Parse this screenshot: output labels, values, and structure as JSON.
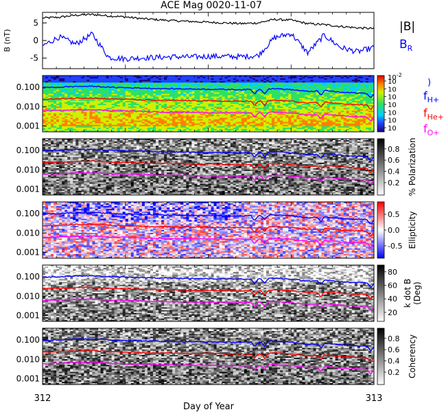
{
  "title": "ACE Mag 0020-11-07",
  "colors": {
    "blue": "#0000ff",
    "red": "#ff0000",
    "magenta": "#ff00ff",
    "black": "#000000"
  },
  "chart_data": [
    {
      "type": "line",
      "panel": "magnetic-field",
      "ylabel": "B (nT)",
      "ylim": [
        -8,
        8
      ],
      "yticks": [
        "5",
        "0",
        "-5"
      ],
      "legend": [
        {
          "label": "|B|",
          "color": "#000000"
        },
        {
          "label": "B",
          "sub": "R",
          "color": "#0000ff"
        }
      ],
      "x": [
        312.0,
        312.05,
        312.1,
        312.15,
        312.2,
        312.25,
        312.3,
        312.35,
        312.4,
        312.45,
        312.5,
        312.55,
        312.6,
        312.65,
        312.7,
        312.75,
        312.8,
        312.85,
        312.9,
        312.95,
        313.0
      ],
      "series": [
        {
          "name": "|B|",
          "values": [
            6.4,
            6.6,
            7.2,
            7.4,
            7.0,
            6.7,
            6.2,
            5.9,
            5.6,
            5.4,
            5.2,
            5.0,
            4.8,
            5.0,
            6.0,
            5.8,
            4.8,
            4.5,
            4.0,
            3.6,
            3.4
          ]
        },
        {
          "name": "B",
          "sub": "R",
          "values": [
            -1.5,
            1.0,
            -1.0,
            1.8,
            -4.8,
            -5.2,
            -4.9,
            -4.8,
            -4.6,
            -4.7,
            -4.5,
            -4.5,
            -4.6,
            -4.3,
            0.8,
            2.0,
            -3.5,
            1.5,
            -2.0,
            -3.2,
            -2.0
          ]
        }
      ]
    },
    {
      "type": "heatmap",
      "panel": "power-spectrum",
      "ylabel": "f (Hz)",
      "yscale": "log",
      "ylim": [
        0.0005,
        0.4
      ],
      "yticks": [
        "0.100",
        "0.010",
        "0.001"
      ],
      "colorbar": {
        "ticks": [
          "10",
          "10",
          "10",
          "10",
          "10",
          "10",
          "10"
        ],
        "top_tick": "10",
        "top_exp": "-2"
      },
      "legend": [
        {
          "label": "f",
          "sub": "H+",
          "color": "#0000ff"
        },
        {
          "label": "f",
          "sub": "He+",
          "color": "#ff0000"
        },
        {
          "label": "f",
          "sub": "O+",
          "color": "#ff00ff"
        }
      ]
    },
    {
      "type": "heatmap",
      "panel": "polarization",
      "yscale": "log",
      "ylim": [
        0.0005,
        0.4
      ],
      "yticks": [
        "0.100",
        "0.010",
        "0.001"
      ],
      "colorbar": {
        "label": "% Polarization",
        "ticks": [
          "0.8",
          "0.6",
          "0.4",
          "0.2"
        ]
      }
    },
    {
      "type": "heatmap",
      "panel": "ellipticity",
      "yscale": "log",
      "ylim": [
        0.0005,
        0.4
      ],
      "yticks": [
        "0.100",
        "0.010",
        "0.001"
      ],
      "colorbar": {
        "label": "Ellipticity",
        "ticks": [
          "0.5",
          "0.0",
          "-0.5"
        ]
      }
    },
    {
      "type": "heatmap",
      "panel": "k-dot-b",
      "yscale": "log",
      "ylim": [
        0.0005,
        0.4
      ],
      "yticks": [
        "0.100",
        "0.010",
        "0.001"
      ],
      "colorbar": {
        "label": "k dot B",
        "label2": "(Deg)",
        "ticks": [
          "80",
          "60",
          "40",
          "20"
        ]
      }
    },
    {
      "type": "heatmap",
      "panel": "coherency",
      "yscale": "log",
      "ylim": [
        0.0005,
        0.4
      ],
      "yticks": [
        "0.100",
        "0.010",
        "0.001"
      ],
      "colorbar": {
        "label": "Coherency",
        "ticks": [
          "0.8",
          "0.6",
          "0.4",
          "0.2"
        ]
      }
    }
  ],
  "gyro_lines": {
    "x": [
      312.0,
      312.05,
      312.1,
      312.15,
      312.2,
      312.25,
      312.3,
      312.35,
      312.4,
      312.45,
      312.5,
      312.55,
      312.6,
      312.65,
      312.7,
      312.75,
      312.8,
      312.85,
      312.9,
      312.95,
      313.0
    ],
    "fH": [
      0.095,
      0.1,
      0.11,
      0.112,
      0.1,
      0.095,
      0.09,
      0.085,
      0.083,
      0.081,
      0.079,
      0.077,
      0.075,
      0.078,
      0.085,
      0.075,
      0.06,
      0.068,
      0.055,
      0.05,
      0.048
    ],
    "fHe": [
      0.024,
      0.025,
      0.027,
      0.028,
      0.025,
      0.024,
      0.022,
      0.021,
      0.021,
      0.02,
      0.02,
      0.019,
      0.019,
      0.019,
      0.021,
      0.019,
      0.015,
      0.017,
      0.014,
      0.0125,
      0.012
    ],
    "fO": [
      0.006,
      0.0062,
      0.0068,
      0.007,
      0.0062,
      0.006,
      0.0056,
      0.0053,
      0.0052,
      0.0051,
      0.0049,
      0.0048,
      0.0047,
      0.0049,
      0.0053,
      0.0047,
      0.0037,
      0.0042,
      0.0034,
      0.0031,
      0.003
    ],
    "dips": [
      312.64,
      312.67,
      312.84,
      312.99
    ]
  },
  "xaxis": {
    "label": "Day of Year",
    "xlim": [
      312,
      313
    ],
    "ticks": [
      "312",
      "313"
    ]
  }
}
